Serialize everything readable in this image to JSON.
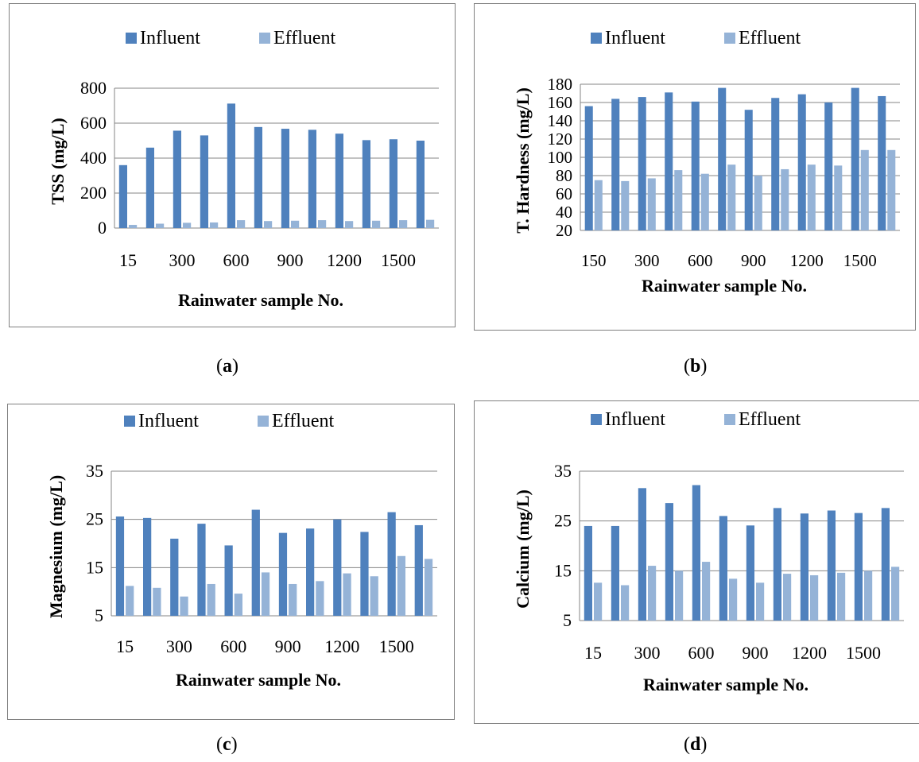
{
  "colors": {
    "influent": "#4f81bd",
    "effluent": "#95b3d7",
    "grid": "#868686",
    "axis": "#868686"
  },
  "chart_data": [
    {
      "id": "a",
      "type": "bar",
      "caption": "a",
      "ylabel": "TSS (mg/L)",
      "xlabel": "Rainwater sample No.",
      "ylim": [
        0,
        800
      ],
      "yticks": [
        0,
        200,
        400,
        600,
        800
      ],
      "xtick_labels": [
        "15",
        "300",
        "600",
        "900",
        "1200",
        "1500"
      ],
      "legend": [
        "Influent",
        "Effluent"
      ],
      "legend_position": "top",
      "grid": true,
      "series": [
        {
          "name": "Influent",
          "values": [
            360,
            460,
            557,
            530,
            712,
            578,
            568,
            562,
            540,
            503,
            508,
            500
          ]
        },
        {
          "name": "Effluent",
          "values": [
            18,
            25,
            30,
            32,
            45,
            40,
            42,
            45,
            40,
            42,
            45,
            47
          ]
        }
      ]
    },
    {
      "id": "b",
      "type": "bar",
      "caption": "b",
      "ylabel": "T. Hardness (mg/L)",
      "xlabel": "Rainwater sample No.",
      "ylim": [
        20,
        180
      ],
      "yticks": [
        20,
        40,
        60,
        80,
        100,
        120,
        140,
        160,
        180
      ],
      "xtick_labels": [
        "150",
        "300",
        "600",
        "900",
        "1200",
        "1500"
      ],
      "legend": [
        "Influent",
        "Effluent"
      ],
      "legend_position": "top",
      "grid": true,
      "series": [
        {
          "name": "Influent",
          "values": [
            156,
            164,
            166,
            171,
            161,
            176,
            152,
            165,
            169,
            160,
            176,
            167
          ]
        },
        {
          "name": "Effluent",
          "values": [
            75,
            74,
            77,
            86,
            82,
            92,
            80,
            87,
            92,
            91,
            108,
            108
          ]
        }
      ]
    },
    {
      "id": "c",
      "type": "bar",
      "caption": "c",
      "ylabel": "Magnesium (mg/L)",
      "xlabel": "Rainwater sample No.",
      "ylim": [
        5,
        35
      ],
      "yticks": [
        5,
        15,
        25,
        35
      ],
      "xtick_labels": [
        "15",
        "300",
        "600",
        "900",
        "1200",
        "1500"
      ],
      "legend": [
        "Influent",
        "Effluent"
      ],
      "legend_position": "top",
      "grid": true,
      "series": [
        {
          "name": "Influent",
          "values": [
            25.6,
            25.3,
            21.0,
            24.1,
            19.6,
            27.0,
            22.2,
            23.1,
            25.0,
            22.4,
            26.5,
            23.8
          ]
        },
        {
          "name": "Effluent",
          "values": [
            11.2,
            10.8,
            9.0,
            11.6,
            9.6,
            14.0,
            11.6,
            12.2,
            13.8,
            13.2,
            17.4,
            16.8
          ]
        }
      ]
    },
    {
      "id": "d",
      "type": "bar",
      "caption": "d",
      "ylabel": "Calcium (mg/L)",
      "xlabel": "Rainwater sample No.",
      "ylim": [
        5,
        35
      ],
      "yticks": [
        5,
        15,
        25,
        35
      ],
      "xtick_labels": [
        "15",
        "300",
        "600",
        "900",
        "1200",
        "1500"
      ],
      "legend": [
        "Influent",
        "Effluent"
      ],
      "legend_position": "top",
      "grid": true,
      "series": [
        {
          "name": "Influent",
          "values": [
            24.0,
            24.0,
            31.6,
            28.6,
            32.2,
            26.0,
            24.1,
            27.6,
            26.5,
            27.1,
            26.6,
            27.6
          ]
        },
        {
          "name": "Effluent",
          "values": [
            12.6,
            12.1,
            16.0,
            15.0,
            16.8,
            13.4,
            12.6,
            14.4,
            14.1,
            14.6,
            15.0,
            15.8
          ]
        }
      ]
    }
  ]
}
